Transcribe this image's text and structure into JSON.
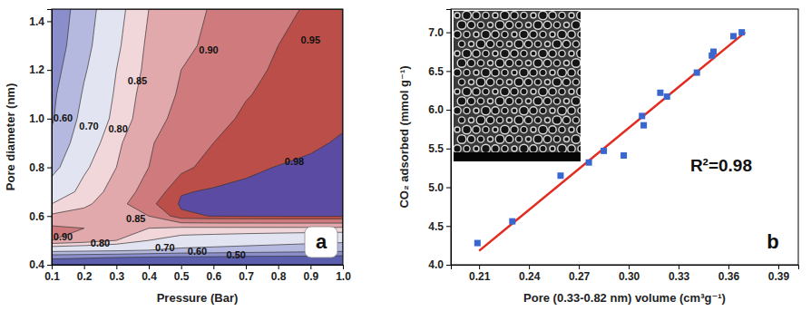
{
  "chart_data": [
    {
      "type": "contour",
      "panel_label": "a",
      "xlabel": "Pressure (Bar)",
      "ylabel": "Pore diameter (nm)",
      "xlim": [
        0.1,
        1.0
      ],
      "ylim": [
        0.4,
        1.45
      ],
      "xticks": [
        0.1,
        0.2,
        0.3,
        0.4,
        0.5,
        0.6,
        0.7,
        0.8,
        0.9,
        {
          "value": 1.0,
          "label": "1.0"
        }
      ],
      "yticks": [
        0.4,
        0.6,
        0.8,
        {
          "value": 1.0,
          "label": "1.0"
        },
        1.2,
        1.4
      ],
      "x": [
        0.1,
        0.2,
        0.3,
        0.4,
        0.5,
        0.6,
        0.7,
        0.8,
        0.9,
        1.0
      ],
      "y": [
        0.4,
        0.43,
        0.46,
        0.5,
        0.55,
        0.6,
        0.65,
        0.7,
        0.8,
        0.9,
        1.0,
        1.1,
        1.2,
        1.3,
        1.45
      ],
      "z": [
        [
          0.42,
          0.42,
          0.41,
          0.41,
          0.4,
          0.4,
          0.39,
          0.39,
          0.38,
          0.38
        ],
        [
          0.52,
          0.51,
          0.5,
          0.49,
          0.48,
          0.48,
          0.47,
          0.47,
          0.47,
          0.46
        ],
        [
          0.74,
          0.73,
          0.72,
          0.7,
          0.68,
          0.67,
          0.66,
          0.65,
          0.64,
          0.63
        ],
        [
          0.9,
          0.88,
          0.85,
          0.8,
          0.77,
          0.76,
          0.75,
          0.74,
          0.73,
          0.72
        ],
        [
          0.91,
          0.9,
          0.86,
          0.85,
          0.84,
          0.84,
          0.84,
          0.84,
          0.84,
          0.84
        ],
        [
          0.86,
          0.87,
          0.87,
          0.9,
          0.975,
          0.981,
          0.982,
          0.983,
          0.983,
          0.983
        ],
        [
          0.8,
          0.84,
          0.88,
          0.94,
          0.984,
          0.986,
          0.987,
          0.987,
          0.987,
          0.987
        ],
        [
          0.75,
          0.82,
          0.87,
          0.92,
          0.978,
          0.983,
          0.986,
          0.987,
          0.988,
          0.988
        ],
        [
          0.67,
          0.79,
          0.85,
          0.9,
          0.94,
          0.965,
          0.975,
          0.981,
          0.985,
          0.987
        ],
        [
          0.62,
          0.76,
          0.84,
          0.895,
          0.925,
          0.95,
          0.96,
          0.968,
          0.976,
          0.983
        ],
        [
          0.59,
          0.73,
          0.82,
          0.88,
          0.915,
          0.94,
          0.955,
          0.962,
          0.97,
          0.976
        ],
        [
          0.58,
          0.71,
          0.81,
          0.875,
          0.905,
          0.93,
          0.948,
          0.958,
          0.965,
          0.972
        ],
        [
          0.56,
          0.69,
          0.8,
          0.865,
          0.9,
          0.92,
          0.94,
          0.955,
          0.963,
          0.97
        ],
        [
          0.54,
          0.67,
          0.79,
          0.86,
          0.89,
          0.91,
          0.935,
          0.95,
          0.96,
          0.968
        ],
        [
          0.53,
          0.65,
          0.78,
          0.85,
          0.88,
          0.905,
          0.925,
          0.94,
          0.955,
          0.965
        ]
      ],
      "levels": [
        0.5,
        0.6,
        0.7,
        0.8,
        0.85,
        0.9,
        0.95,
        0.98
      ],
      "colors": [
        "#5a5ead",
        "#8a8fcc",
        "#b6b9df",
        "#e3e4f2",
        "#f2d7da",
        "#e2a9ad",
        "#cf7b7d",
        "#bb4e48",
        "#5b4ba3"
      ],
      "annotations": [
        {
          "text": "0.60",
          "x": 0.135,
          "y": 1.0
        },
        {
          "text": "0.70",
          "x": 0.215,
          "y": 0.965
        },
        {
          "text": "0.80",
          "x": 0.305,
          "y": 0.955
        },
        {
          "text": "0.85",
          "x": 0.365,
          "y": 1.15
        },
        {
          "text": "0.90",
          "x": 0.585,
          "y": 1.28
        },
        {
          "text": "0.95",
          "x": 0.9,
          "y": 1.32
        },
        {
          "text": "0.98",
          "x": 0.85,
          "y": 0.82
        },
        {
          "text": "0.90",
          "x": 0.135,
          "y": 0.51
        },
        {
          "text": "0.80",
          "x": 0.25,
          "y": 0.487
        },
        {
          "text": "0.85",
          "x": 0.36,
          "y": 0.585
        },
        {
          "text": "0.70",
          "x": 0.45,
          "y": 0.466
        },
        {
          "text": "0.60",
          "x": 0.55,
          "y": 0.452
        },
        {
          "text": "0.50",
          "x": 0.67,
          "y": 0.438
        }
      ]
    },
    {
      "type": "scatter",
      "panel_label": "b",
      "xlabel": "Pore (0.33-0.82 nm) volume (cm³g⁻¹)",
      "ylabel": "CO₂ adsorbed (mmol g⁻¹)",
      "xlim": [
        0.193,
        0.402
      ],
      "ylim": [
        4.0,
        7.3
      ],
      "xticks": [
        0.21,
        0.24,
        0.27,
        {
          "value": 0.3,
          "label": "0.30"
        },
        0.33,
        0.36,
        0.39
      ],
      "yticks": [
        {
          "value": 4.0,
          "label": "4.0"
        },
        4.5,
        {
          "value": 5.0,
          "label": "5.0"
        },
        5.5,
        {
          "value": 6.0,
          "label": "6.0"
        },
        6.5,
        {
          "value": 7.0,
          "label": "7.0"
        }
      ],
      "series": [
        {
          "type": "line",
          "color": "#e32b1f",
          "line_style": "solid",
          "x": [
            0.21,
            0.37
          ],
          "values": [
            4.18,
            7.0
          ]
        },
        {
          "type": "scatter",
          "color": "#3a66d0",
          "marker": "square",
          "x": [
            0.209,
            0.23,
            0.259,
            0.276,
            0.285,
            0.297,
            0.308,
            0.309,
            0.319,
            0.323,
            0.341,
            0.35,
            0.351,
            0.363,
            0.368
          ],
          "values": [
            4.28,
            4.56,
            5.15,
            5.32,
            5.47,
            5.41,
            5.92,
            5.8,
            6.22,
            6.17,
            6.48,
            6.7,
            6.75,
            6.95,
            7.0
          ]
        }
      ],
      "annotations": [
        {
          "text": "R²=0.98",
          "x": 0.337,
          "y": 5.2
        }
      ]
    }
  ]
}
